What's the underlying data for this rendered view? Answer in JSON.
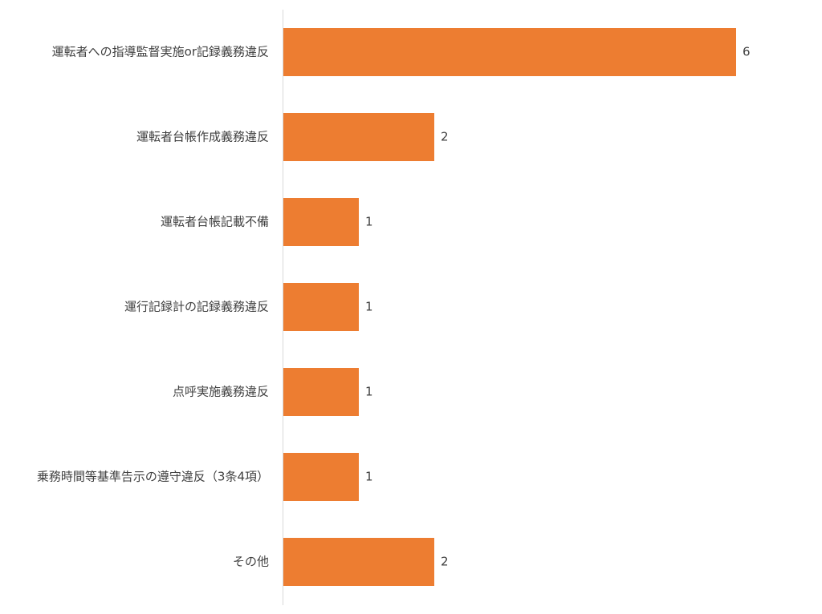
{
  "chart_data": {
    "type": "hbar",
    "categories": [
      "運転者への指導監督実施or記録義務違反",
      "運転者台帳作成義務違反",
      "運転者台帳記載不備",
      "運行記録計の記録義務違反",
      "点呼実施義務違反",
      "乗務時間等基準告示の遵守違反（3条4項）",
      "その他"
    ],
    "values": [
      6,
      2,
      1,
      1,
      1,
      1,
      2
    ],
    "color": "#ed7d31",
    "xlim": [
      0,
      6
    ]
  }
}
